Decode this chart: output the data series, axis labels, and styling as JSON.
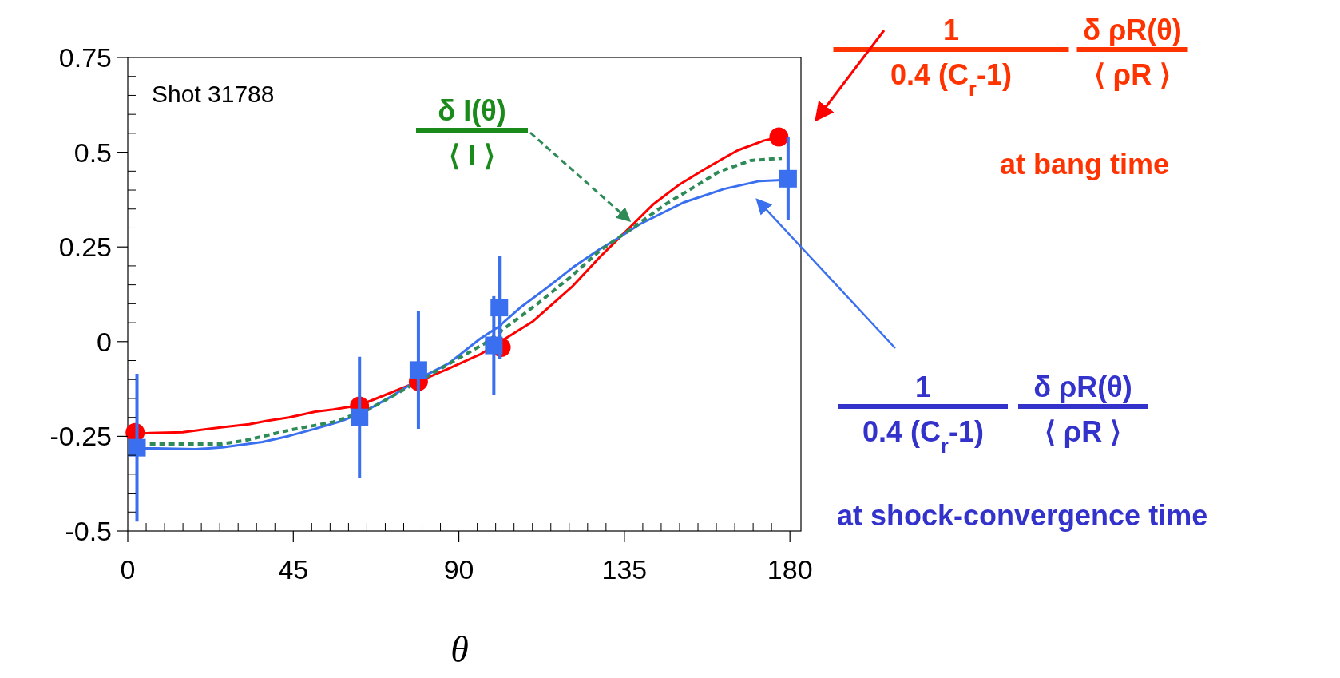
{
  "chart_data": {
    "type": "line",
    "xlabel": "θ",
    "xlim": [
      0,
      183
    ],
    "ylim": [
      -0.5,
      0.75
    ],
    "xticks": [
      0,
      {
        "value": 5,
        "label": null
      },
      {
        "value": 10,
        "label": null
      },
      {
        "value": 15,
        "label": null
      },
      {
        "value": 20,
        "label": null
      },
      {
        "value": 25,
        "label": null
      },
      {
        "value": 30,
        "label": null
      },
      {
        "value": 35,
        "label": null
      },
      {
        "value": 40,
        "label": null
      },
      45,
      {
        "value": 50,
        "label": null
      },
      {
        "value": 55,
        "label": null
      },
      {
        "value": 60,
        "label": null
      },
      {
        "value": 65,
        "label": null
      },
      {
        "value": 70,
        "label": null
      },
      {
        "value": 75,
        "label": null
      },
      {
        "value": 80,
        "label": null
      },
      {
        "value": 85,
        "label": null
      },
      90,
      {
        "value": 95,
        "label": null
      },
      {
        "value": 100,
        "label": null
      },
      {
        "value": 105,
        "label": null
      },
      {
        "value": 110,
        "label": null
      },
      {
        "value": 115,
        "label": null
      },
      {
        "value": 120,
        "label": null
      },
      {
        "value": 125,
        "label": null
      },
      {
        "value": 130,
        "label": null
      },
      135,
      {
        "value": 140,
        "label": null
      },
      {
        "value": 145,
        "label": null
      },
      {
        "value": 150,
        "label": null
      },
      {
        "value": 155,
        "label": null
      },
      {
        "value": 160,
        "label": null
      },
      {
        "value": 165,
        "label": null
      },
      {
        "value": 170,
        "label": null
      },
      {
        "value": 175,
        "label": null
      },
      180
    ],
    "yticks": [
      -0.5,
      {
        "value": -0.45,
        "label": null
      },
      {
        "value": -0.4,
        "label": null
      },
      {
        "value": -0.35,
        "label": null
      },
      {
        "value": -0.3,
        "label": null
      },
      -0.25,
      {
        "value": -0.2,
        "label": null
      },
      {
        "value": -0.15,
        "label": null
      },
      {
        "value": -0.1,
        "label": null
      },
      {
        "value": -0.05,
        "label": null
      },
      0,
      {
        "value": 0.05,
        "label": null
      },
      {
        "value": 0.1,
        "label": null
      },
      {
        "value": 0.15,
        "label": null
      },
      {
        "value": 0.2,
        "label": null
      },
      0.25,
      {
        "value": 0.3,
        "label": null
      },
      {
        "value": 0.35,
        "label": null
      },
      {
        "value": 0.4,
        "label": null
      },
      {
        "value": 0.45,
        "label": null
      },
      0.5,
      {
        "value": 0.55,
        "label": null
      },
      {
        "value": 0.6,
        "label": null
      },
      {
        "value": 0.65,
        "label": null
      },
      {
        "value": 0.7,
        "label": null
      },
      0.75
    ],
    "series": [
      {
        "color": "#ff0000",
        "marker": "none",
        "x": [
          1.8,
          6,
          15,
          25.7,
          33,
          37.8,
          43.8,
          51,
          55.9,
          63,
          70.4,
          78.8,
          87.3,
          95.7,
          110.2,
          121,
          128.3,
          135.6,
          142.8,
          150,
          157.3,
          162.1,
          165.8,
          173,
          177.2
        ],
        "values": [
          -0.244,
          -0.241,
          -0.239,
          -0.226,
          -0.218,
          -0.209,
          -0.2,
          -0.185,
          -0.179,
          -0.168,
          -0.139,
          -0.106,
          -0.071,
          -0.034,
          0.054,
          0.147,
          0.223,
          0.293,
          0.362,
          0.415,
          0.458,
          0.485,
          0.505,
          0.531,
          0.54
        ]
      },
      {
        "color": "#3a6ff0",
        "marker": "none",
        "x": [
          0.4,
          7.6,
          18.5,
          25.7,
          36.6,
          43.8,
          51,
          58.3,
          64.3,
          71.6,
          80,
          87.3,
          95.7,
          100.6,
          106.6,
          113.8,
          121,
          128.3,
          133.1,
          139.2,
          145.2,
          151.3,
          162.1,
          171.8,
          179
        ],
        "values": [
          -0.282,
          -0.282,
          -0.284,
          -0.279,
          -0.265,
          -0.249,
          -0.23,
          -0.209,
          -0.185,
          -0.145,
          -0.094,
          -0.057,
          0.007,
          0.038,
          0.089,
          0.141,
          0.196,
          0.244,
          0.272,
          0.31,
          0.339,
          0.368,
          0.403,
          0.424,
          0.427
        ]
      },
      {
        "color": "#2e8b57",
        "marker": "none",
        "line_style": "dashed",
        "x": [
          6,
          11.2,
          25.7,
          31.8,
          43.8,
          55.9,
          65.5,
          72.8,
          82.5,
          89.7,
          97,
          104.2,
          111.4,
          121,
          128.3,
          137.8,
          146.4,
          152.4,
          160.8,
          169.3,
          177.8
        ],
        "values": [
          -0.27,
          -0.27,
          -0.27,
          -0.261,
          -0.234,
          -0.212,
          -0.179,
          -0.139,
          -0.086,
          -0.045,
          -0.005,
          0.048,
          0.1,
          0.176,
          0.24,
          0.304,
          0.364,
          0.399,
          0.449,
          0.478,
          0.484
        ]
      },
      {
        "type": "scatter",
        "color": "#ff0000",
        "marker": "circle",
        "x": [
          2,
          63,
          79,
          101.5,
          177
        ],
        "values": [
          -0.24,
          -0.17,
          -0.105,
          -0.015,
          0.54
        ]
      },
      {
        "type": "scatter",
        "color": "#3a6ff0",
        "marker": "square",
        "x": [
          2.5,
          63,
          79,
          99.5,
          101,
          179.5
        ],
        "values": [
          -0.28,
          -0.2,
          -0.075,
          -0.01,
          0.09,
          0.43
        ],
        "errors": [
          0.195,
          0.16,
          0.155,
          0.13,
          0.135,
          0.11
        ]
      }
    ],
    "annotations": [
      "Shot 31788",
      "δ I(θ)",
      "⟨ I ⟩",
      "1",
      "0.4 (C$_{r}$-1)",
      "δ ρR(θ)",
      "⟨ ρR ⟩",
      "at bang time",
      "1",
      "0.4 (C$_{r}$-1)",
      "δ ρR(θ)",
      "⟨ ρR ⟩",
      "at shock-convergence time"
    ]
  }
}
